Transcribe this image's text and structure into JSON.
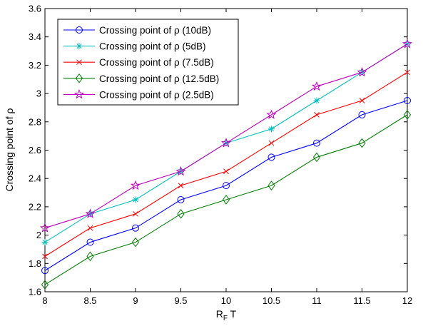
{
  "chart_data": {
    "type": "line",
    "title": "",
    "xlabel_main": "R",
    "xlabel_sub": "F",
    "xlabel_tail": " T",
    "ylabel": "Crossing point of ρ",
    "xlim": [
      8,
      12
    ],
    "ylim": [
      1.6,
      3.6
    ],
    "xticks": [
      "8",
      "8.5",
      "9",
      "9.5",
      "10",
      "10.5",
      "11",
      "11.5",
      "12"
    ],
    "yticks": [
      "1.6",
      "1.8",
      "2",
      "2.2",
      "2.4",
      "2.6",
      "2.8",
      "3",
      "3.2",
      "3.4",
      "3.6"
    ],
    "grid": false,
    "legend_position": "top-left",
    "x": [
      8,
      8.5,
      9,
      9.5,
      10,
      10.5,
      11,
      11.5,
      12
    ],
    "series": [
      {
        "name": "Crossing point of ρ (10dB)",
        "color": "#0000ff",
        "marker": "circle",
        "values": [
          1.75,
          1.95,
          2.05,
          2.25,
          2.35,
          2.55,
          2.65,
          2.85,
          2.95
        ]
      },
      {
        "name": "Crossing point of ρ (5dB)",
        "color": "#00bfbf",
        "marker": "asterisk",
        "values": [
          1.95,
          2.15,
          2.25,
          2.45,
          2.65,
          2.75,
          2.95,
          3.15,
          3.35
        ]
      },
      {
        "name": "Crossing point of ρ (7.5dB)",
        "color": "#ff0000",
        "marker": "x",
        "values": [
          1.85,
          2.05,
          2.15,
          2.35,
          2.45,
          2.65,
          2.85,
          2.95,
          3.15
        ]
      },
      {
        "name": "Crossing point of ρ (12.5dB)",
        "color": "#008000",
        "marker": "diamond",
        "values": [
          1.65,
          1.85,
          1.95,
          2.15,
          2.25,
          2.35,
          2.55,
          2.65,
          2.85
        ]
      },
      {
        "name": "Crossing point of ρ (2.5dB)",
        "color": "#bf00bf",
        "marker": "star",
        "values": [
          2.05,
          2.15,
          2.35,
          2.45,
          2.65,
          2.85,
          3.05,
          3.15,
          3.35
        ]
      }
    ]
  }
}
